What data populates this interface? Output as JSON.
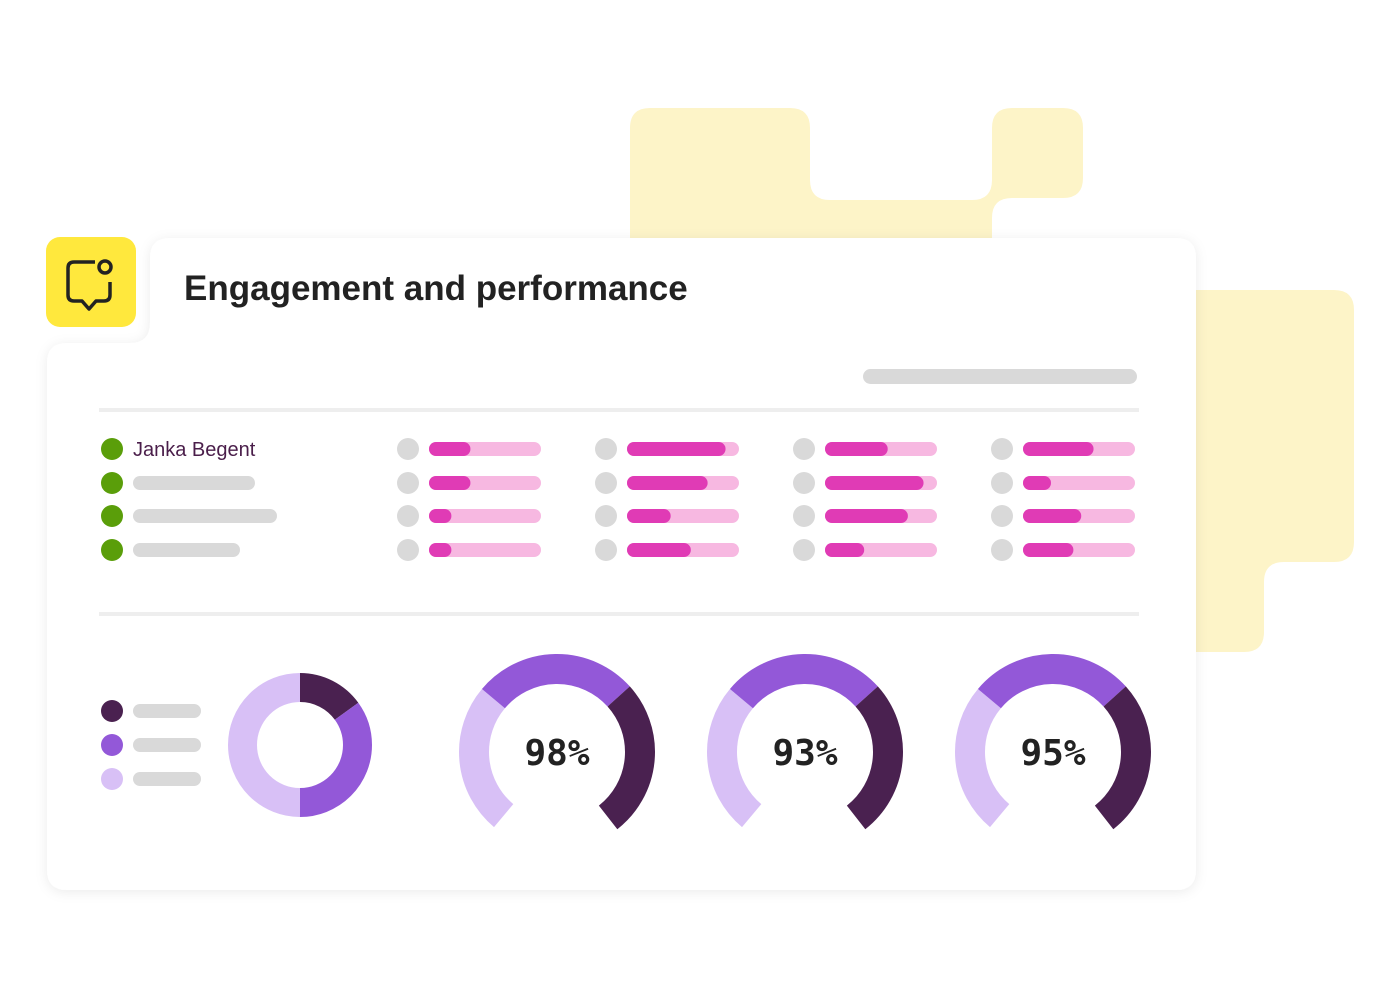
{
  "header": {
    "title": "Engagement and performance"
  },
  "people": {
    "first_name": "Janka Begent"
  },
  "progress_bars": {
    "fill_color": "#e03bb5",
    "track_color": "#f7b8e1",
    "columns": [
      [
        37,
        37,
        20,
        20
      ],
      [
        88,
        72,
        39,
        57
      ],
      [
        56,
        88,
        74,
        35
      ],
      [
        63,
        25,
        52,
        45
      ]
    ]
  },
  "donut": {
    "segments": [
      {
        "value": 15,
        "color": "#4a2150"
      },
      {
        "value": 35,
        "color": "#9358d8"
      },
      {
        "value": 50,
        "color": "#d8c0f6"
      }
    ]
  },
  "gauges": {
    "labels": [
      "98%",
      "93%",
      "95%"
    ]
  }
}
